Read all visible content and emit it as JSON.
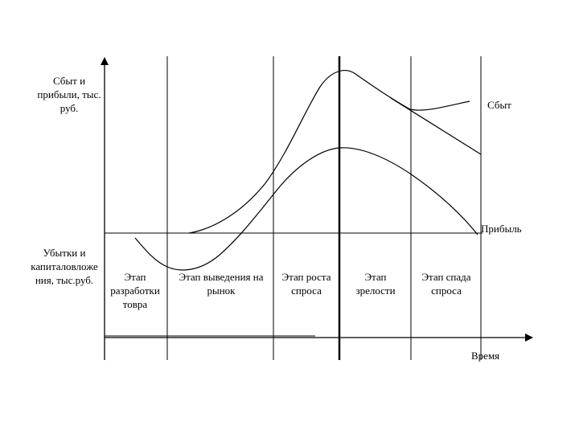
{
  "axis_labels": {
    "y_positive": "Сбыт и\nприбыли, тыс.\nруб.",
    "y_negative": "Убытки и\nкапиталовложе\nния, тыс.руб.",
    "x": "Время"
  },
  "curves": {
    "sales": "Сбыт",
    "profit": "Прибыль"
  },
  "stages": [
    "Этап\nразработки\nтовра",
    "Этап выведения на\nрынок",
    "Этап роста\nспроса",
    "Этап\nзрелости",
    "Этап спада\nспроса"
  ],
  "colors": {
    "line": "#000000",
    "background": "#ffffff"
  }
}
